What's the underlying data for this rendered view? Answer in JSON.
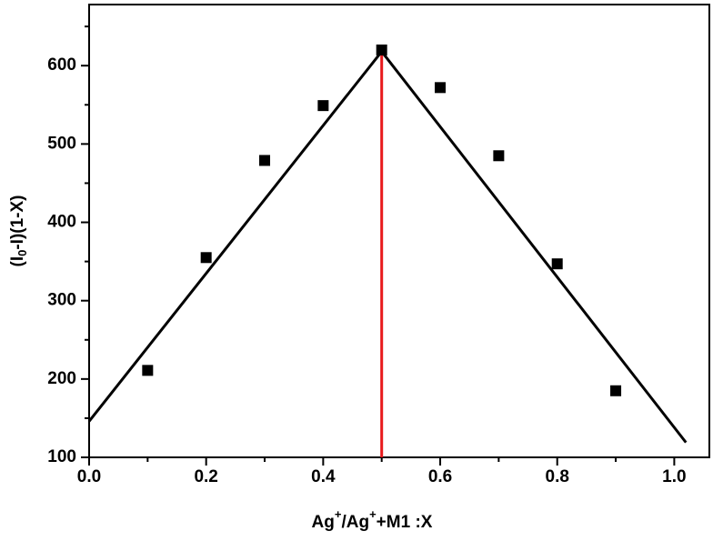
{
  "chart_data": {
    "type": "scatter",
    "x_label": [
      "Ag",
      "+",
      "/Ag",
      "+",
      "+M1 :X"
    ],
    "y_label": [
      "(I",
      "0",
      "-I)(1-X)"
    ],
    "x": [
      0.1,
      0.2,
      0.3,
      0.4,
      0.5,
      0.6,
      0.7,
      0.8,
      0.9
    ],
    "values": [
      211,
      355,
      479,
      549,
      620,
      572,
      485,
      347,
      185
    ],
    "color": "#000000",
    "fit_lines": [
      {
        "x": [
          0,
          0.5
        ],
        "values": [
          146,
          618
        ],
        "color": "#000000"
      },
      {
        "x": [
          0.5,
          1.02
        ],
        "values": [
          618,
          119
        ],
        "color": "#000000"
      }
    ],
    "vertical_line": {
      "x": 0.5,
      "top": 618,
      "color": "#e8191c"
    },
    "xlim": [
      0,
      1.06
    ],
    "ylim": [
      100,
      678
    ],
    "xticks": [
      {
        "value": 0,
        "label": "0.0"
      },
      {
        "value": 0.2,
        "label": "0.2"
      },
      {
        "value": 0.4,
        "label": "0.4"
      },
      {
        "value": 0.6,
        "label": "0.6"
      },
      {
        "value": 0.8,
        "label": "0.8"
      },
      {
        "value": 1,
        "label": "1.0"
      }
    ],
    "yticks": [
      100,
      200,
      300,
      400,
      500,
      600
    ],
    "xminorticks": [
      0.1,
      0.3,
      0.5,
      0.7,
      0.9
    ],
    "yminorticks": [
      150,
      250,
      350,
      450,
      550,
      650
    ]
  }
}
